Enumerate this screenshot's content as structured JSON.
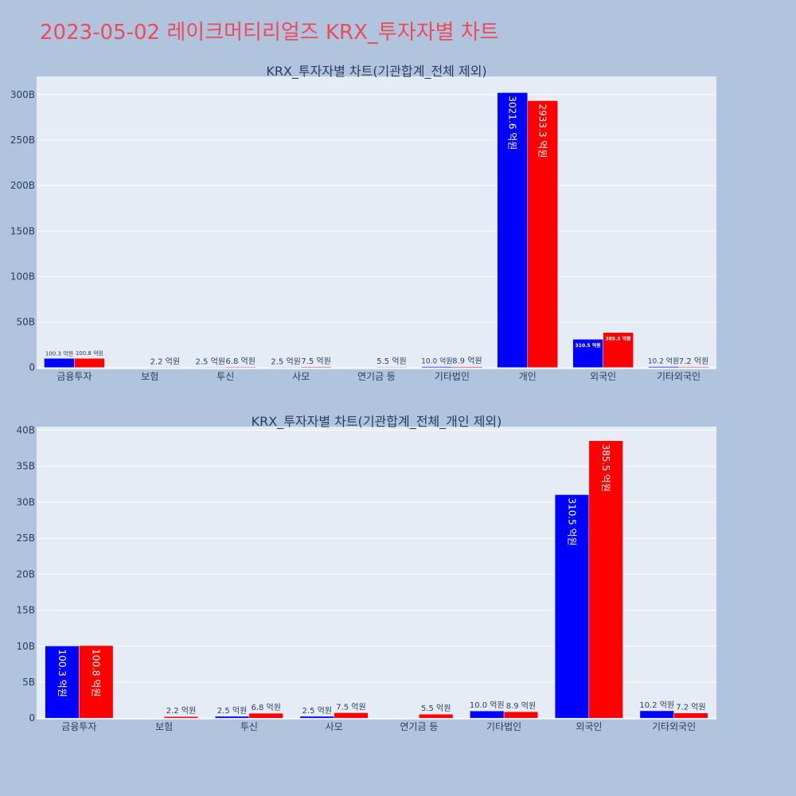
{
  "page": {
    "title": "2023-05-02 레이크머티리얼즈 KRX_투자자별 차트"
  },
  "colors": {
    "background": "#b0c4de",
    "plot_bg": "#e5ecf6",
    "series_a": "#0000ff",
    "series_b": "#ff0000",
    "title": "#ee4a5a",
    "text": "#2a3f5f"
  },
  "chart_data": [
    {
      "type": "bar",
      "title": "KRX_투자자별 차트(기관합계_전체 제외)",
      "categories": [
        "금융투자",
        "보험",
        "투신",
        "사모",
        "연기금 등",
        "기타법인",
        "개인",
        "외국인",
        "기타외국인"
      ],
      "series": [
        {
          "color": "#0000ff",
          "values": [
            10.03,
            0,
            0.25,
            0.25,
            0,
            1.0,
            302.16,
            31.05,
            1.02
          ],
          "labels": [
            "100.3 억원",
            "",
            "2.5 억원",
            "2.5 억원",
            "",
            "10.0 억원",
            "3021.6 억원",
            "310.5 억원",
            "10.2 억원"
          ]
        },
        {
          "color": "#ff0000",
          "values": [
            10.08,
            0.22,
            0.68,
            0.75,
            0.55,
            0.89,
            293.33,
            38.55,
            0.72
          ],
          "labels": [
            "100.8 억원",
            "2.2 억원",
            "6.8 억원",
            "7.5 억원",
            "5.5 억원",
            "8.9 억원",
            "2933.3 억원",
            "385.5 억원",
            "7.2 억원"
          ]
        }
      ],
      "yticks": [
        "0",
        "50B",
        "100B",
        "150B",
        "200B",
        "250B",
        "300B"
      ],
      "ylim": [
        -2,
        320
      ],
      "grid": true,
      "legend": "none"
    },
    {
      "type": "bar",
      "title": "KRX_투자자별 차트(기관합계_전체_개인 제외)",
      "categories": [
        "금융투자",
        "보험",
        "투신",
        "사모",
        "연기금 등",
        "기타법인",
        "외국인",
        "기타외국인"
      ],
      "series": [
        {
          "color": "#0000ff",
          "values": [
            10.03,
            0,
            0.25,
            0.25,
            0,
            1.0,
            31.05,
            1.02
          ],
          "labels": [
            "100.3 억원",
            "",
            "2.5 억원",
            "2.5 억원",
            "",
            "10.0 억원",
            "310.5 억원",
            "10.2 억원"
          ]
        },
        {
          "color": "#ff0000",
          "values": [
            10.08,
            0.22,
            0.68,
            0.75,
            0.55,
            0.89,
            38.55,
            0.72
          ],
          "labels": [
            "100.8 억원",
            "2.2 억원",
            "6.8 억원",
            "7.5 억원",
            "5.5 억원",
            "8.9 억원",
            "385.5 억원",
            "7.2 억원"
          ]
        }
      ],
      "yticks": [
        "0",
        "5B",
        "10B",
        "15B",
        "20B",
        "25B",
        "30B",
        "35B",
        "40B"
      ],
      "ylim": [
        -0.2,
        40.5
      ],
      "grid": true,
      "legend": "none"
    }
  ]
}
